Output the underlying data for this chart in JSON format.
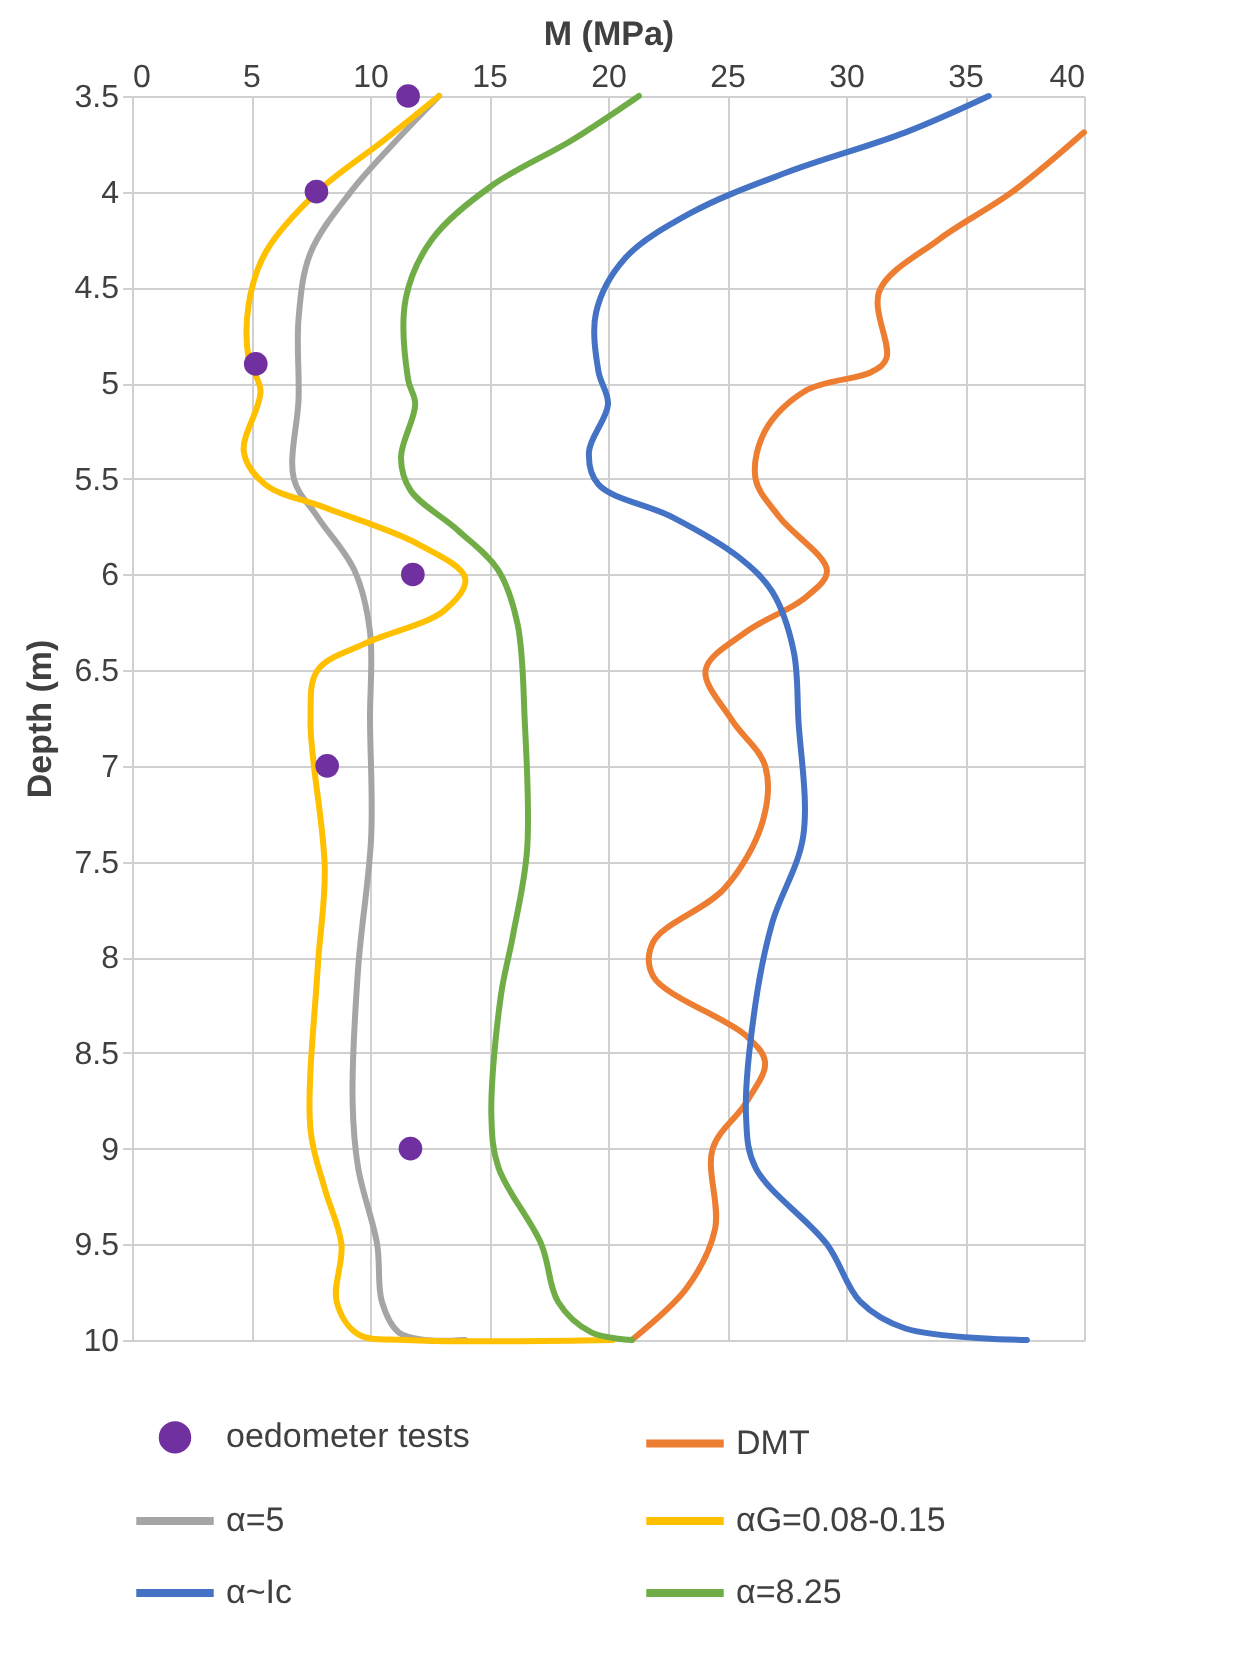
{
  "chart_data": {
    "type": "line",
    "xlabel": "M (MPa)",
    "ylabel": "Depth (m)",
    "xlim": [
      0,
      40
    ],
    "xticks": [
      0,
      5,
      10,
      15,
      20,
      25,
      30,
      35,
      40
    ],
    "ylim": [
      10,
      3.5
    ],
    "yticks": [
      3.5,
      4,
      4.5,
      5,
      5.5,
      6,
      6.5,
      7,
      7.5,
      8,
      8.5,
      9,
      9.5,
      10
    ],
    "grid": true,
    "legend": "bottom",
    "series": [
      {
        "name": "oedometer tests",
        "type": "scatter",
        "marker": "circle",
        "color": "#7030a0",
        "x": [
          11.6,
          7.75,
          5.2,
          11.8,
          8.2,
          11.7
        ],
        "values": [
          3.5,
          4.0,
          4.9,
          6.0,
          7.0,
          9.0
        ]
      },
      {
        "name": "DMT",
        "color": "#ed7d31",
        "x": [
          40,
          37.0,
          33.9,
          31.4,
          31.7,
          31.1,
          28.3,
          26.6,
          26.2,
          27.2,
          29.2,
          28.3,
          25.8,
          24.1,
          25.2,
          26.6,
          26.5,
          24.9,
          21.9,
          21.9,
          25.8,
          26.6,
          25.8,
          24.4,
          24.5,
          23.3,
          21.0
        ],
        "values": [
          3.69,
          4.0,
          4.25,
          4.52,
          4.87,
          4.94,
          5.04,
          5.25,
          5.5,
          5.7,
          5.98,
          6.12,
          6.3,
          6.5,
          6.76,
          7.0,
          7.29,
          7.64,
          7.92,
          8.1,
          8.41,
          8.55,
          8.76,
          9.0,
          9.42,
          9.73,
          10.0
        ]
      },
      {
        "name": "α=5",
        "color": "#a5a5a5",
        "x": [
          12.9,
          10.9,
          9.2,
          7.5,
          7.0,
          7.0,
          6.8,
          7.8,
          9.35,
          10.0,
          10.0,
          10.05,
          9.5,
          9.27,
          9.5,
          10.3,
          10.5,
          11.2,
          12.3,
          14.0
        ],
        "values": [
          3.5,
          3.76,
          4.0,
          4.32,
          4.66,
          5.08,
          5.5,
          5.7,
          5.98,
          6.3,
          6.76,
          7.37,
          8.06,
          8.76,
          9.1,
          9.5,
          9.8,
          9.96,
          10.0,
          10.0
        ]
      },
      {
        "name": "αG=0.08-0.15",
        "color": "#ffc000",
        "x": [
          12.9,
          10.6,
          7.8,
          5.6,
          4.9,
          4.9,
          5.4,
          4.7,
          5.6,
          8.1,
          12.0,
          14.0,
          13.1,
          9.8,
          7.8,
          7.5,
          8.1,
          7.8,
          7.5,
          8.1,
          8.8,
          8.6,
          9.5,
          11.5,
          20.2
        ],
        "values": [
          3.5,
          3.73,
          4.0,
          4.32,
          4.59,
          4.87,
          5.04,
          5.36,
          5.53,
          5.65,
          5.84,
          6.02,
          6.19,
          6.36,
          6.5,
          6.76,
          7.54,
          8.06,
          8.9,
          9.21,
          9.5,
          9.8,
          9.97,
          10.0,
          10.0
        ]
      },
      {
        "name": "α~Ic",
        "color": "#4472c4",
        "x": [
          36.0,
          32.5,
          27.5,
          23.5,
          20.7,
          19.5,
          19.6,
          20.0,
          19.2,
          19.6,
          22.7,
          25.5,
          26.9,
          27.8,
          28.0,
          28.2,
          26.9,
          26.2,
          25.8,
          26.2,
          29.2,
          30.6,
          32.5,
          37.6
        ],
        "values": [
          3.5,
          3.69,
          3.9,
          4.11,
          4.35,
          4.63,
          4.94,
          5.11,
          5.36,
          5.53,
          5.7,
          5.91,
          6.09,
          6.4,
          6.76,
          7.37,
          7.82,
          8.24,
          8.83,
          9.1,
          9.5,
          9.8,
          9.94,
          10.0
        ]
      },
      {
        "name": "α=8.25",
        "color": "#70ad47",
        "x": [
          21.3,
          18.5,
          15.1,
          12.6,
          11.5,
          11.6,
          11.9,
          11.3,
          11.7,
          13.7,
          15.4,
          16.2,
          16.5,
          16.6,
          16.0,
          15.5,
          15.1,
          15.4,
          17.2,
          17.9,
          19.3,
          21.0
        ],
        "values": [
          3.5,
          3.73,
          3.97,
          4.25,
          4.56,
          4.98,
          5.11,
          5.39,
          5.56,
          5.77,
          5.98,
          6.26,
          6.76,
          7.44,
          7.89,
          8.2,
          8.83,
          9.1,
          9.5,
          9.8,
          9.96,
          10.0
        ]
      }
    ]
  }
}
